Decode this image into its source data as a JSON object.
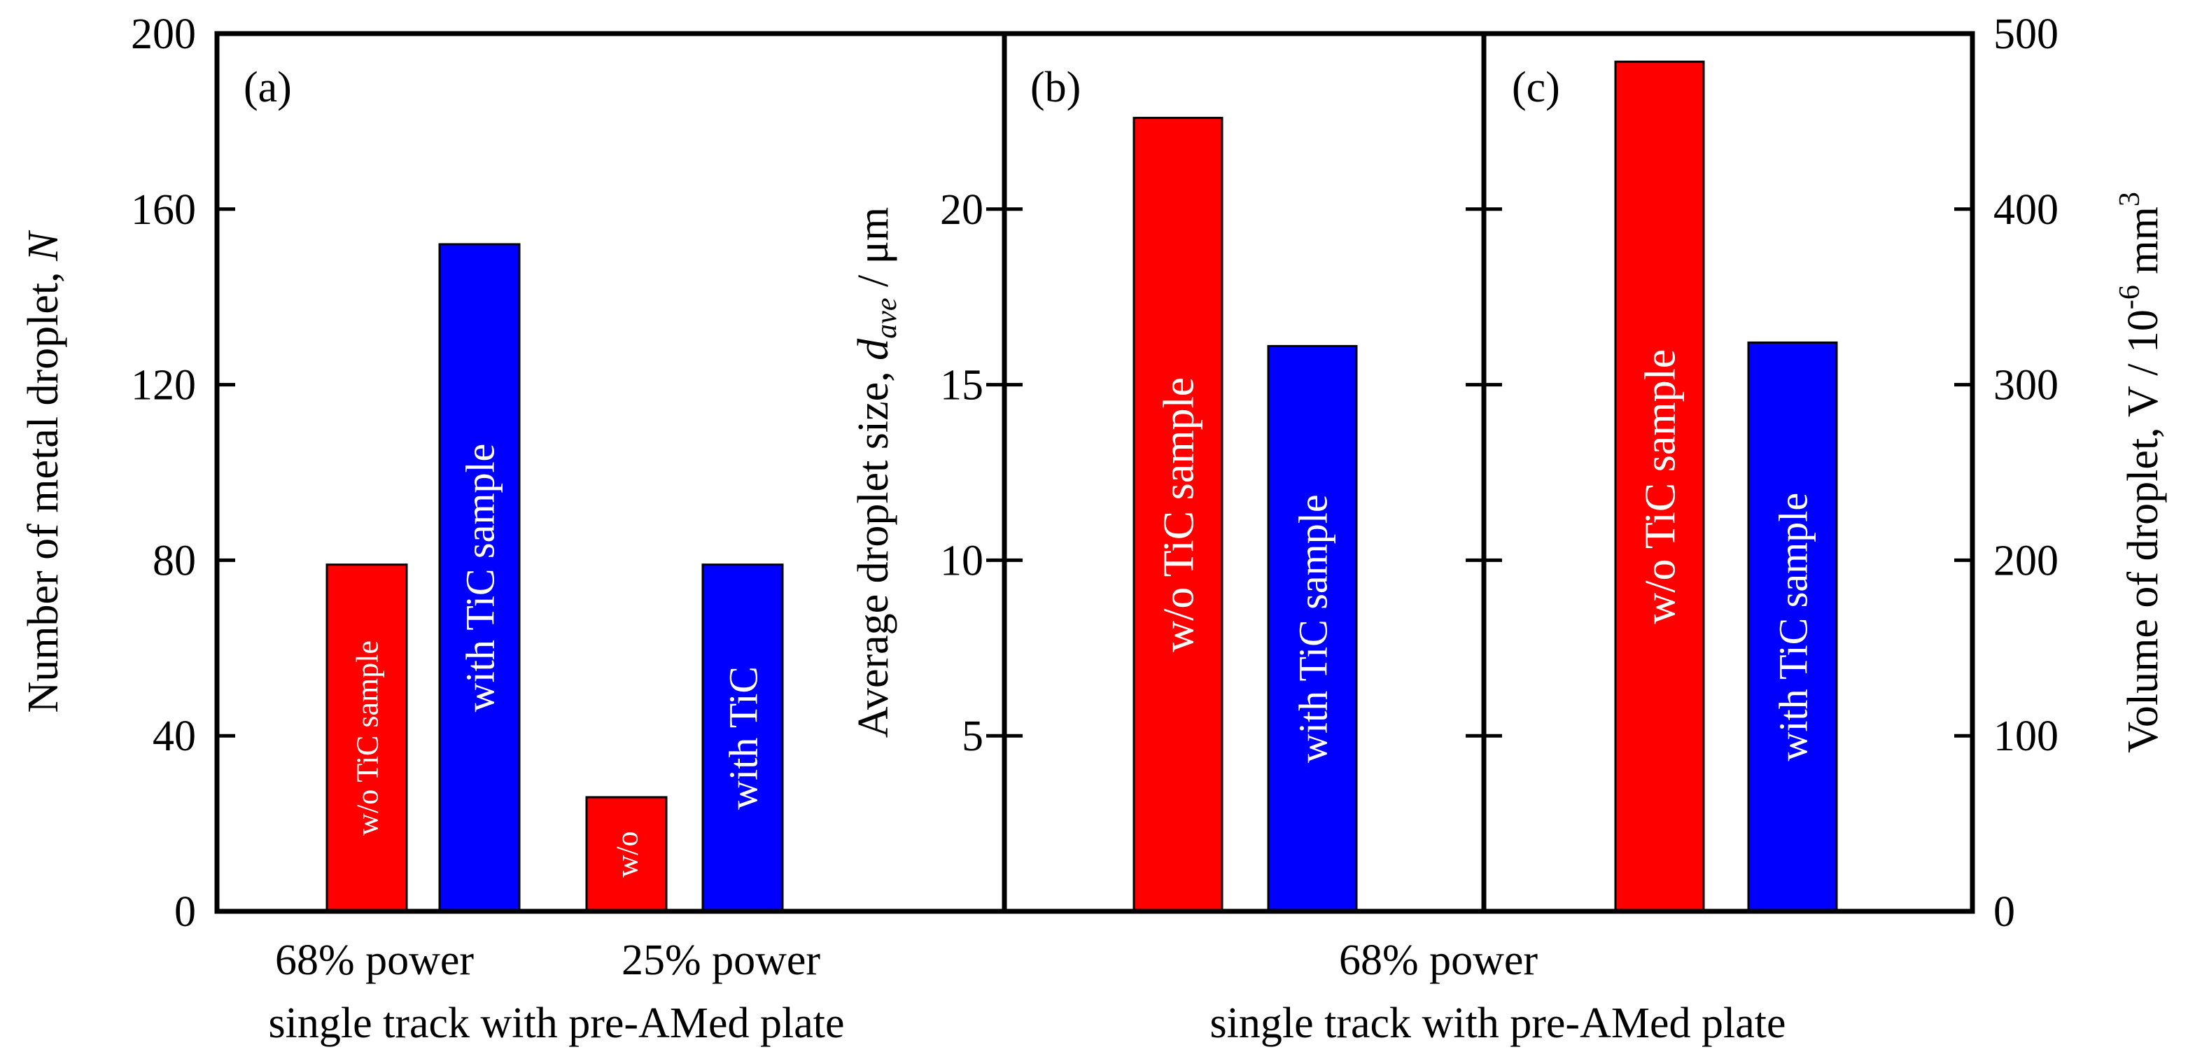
{
  "colors": {
    "red": "#ff0000",
    "blue": "#0000ff",
    "axis": "#000000"
  },
  "chart_data": [
    {
      "panel": "(a)",
      "type": "bar",
      "ylabel": "Number of metal droplet, ",
      "ylabel_var": "N",
      "ylim": [
        0,
        200
      ],
      "yticks": [
        0,
        40,
        80,
        120,
        160,
        200
      ],
      "groups": [
        {
          "label_lines": [
            "68% power"
          ]
        },
        {
          "label_lines": [
            "25% power"
          ]
        }
      ],
      "group_footer": "single  track with pre-AMed plate",
      "bars": [
        {
          "series": "w/o TiC sample",
          "value": 79,
          "label": "w/o TiC sample",
          "color": "red"
        },
        {
          "series": "with TiC sample",
          "value": 152,
          "label": "with TiC sample",
          "color": "blue"
        },
        {
          "series": "w/o TiC sample",
          "value": 26,
          "label": "w/o",
          "color": "red"
        },
        {
          "series": "with TiC sample",
          "value": 79,
          "label": "with TiC",
          "color": "blue"
        }
      ]
    },
    {
      "panel": "(b)",
      "type": "bar",
      "ylabel_parts": [
        "Average  droplet size, ",
        "d",
        "ave",
        " / μm"
      ],
      "ylim": [
        0,
        25
      ],
      "yticks": [
        5,
        10,
        15,
        20
      ],
      "bars": [
        {
          "series": "w/o TiC sample",
          "value": 22.6,
          "label": "w/o TiC sample",
          "color": "red"
        },
        {
          "series": "with TiC sample",
          "value": 16.1,
          "label": "with TiC sample",
          "color": "blue"
        }
      ]
    },
    {
      "panel": "(c)",
      "type": "bar",
      "ylabel_parts": [
        "Volume of droplet, V / 10",
        "-6",
        " mm",
        "3"
      ],
      "ylim": [
        0,
        500
      ],
      "yticks": [
        0,
        100,
        200,
        300,
        400,
        500
      ],
      "bars": [
        {
          "series": "w/o TiC sample",
          "value": 484,
          "label": "w/o TiC sample",
          "color": "red"
        },
        {
          "series": "with TiC sample",
          "value": 324,
          "label": "with TiC sample",
          "color": "blue"
        }
      ]
    }
  ],
  "shared_xlabel": [
    "68% power",
    "single  track with pre-AMed plate"
  ]
}
